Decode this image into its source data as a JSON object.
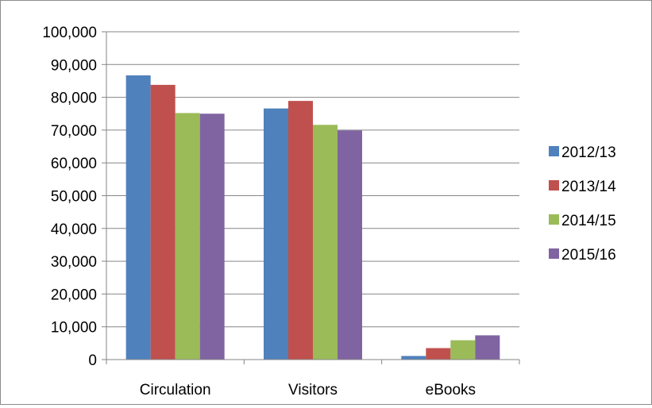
{
  "chart_data": {
    "type": "bar",
    "categories": [
      "Circulation",
      "Visitors",
      "eBooks"
    ],
    "series": [
      {
        "name": "2012/13",
        "color": "#4F81BD",
        "values": [
          86700,
          76600,
          1100
        ]
      },
      {
        "name": "2013/14",
        "color": "#C0504D",
        "values": [
          83800,
          78900,
          3500
        ]
      },
      {
        "name": "2014/15",
        "color": "#9BBB59",
        "values": [
          75200,
          71600,
          5900
        ]
      },
      {
        "name": "2015/16",
        "color": "#8064A2",
        "values": [
          75000,
          69900,
          7400
        ]
      }
    ],
    "y_ticks": [
      "0",
      "10,000",
      "20,000",
      "30,000",
      "40,000",
      "50,000",
      "60,000",
      "70,000",
      "80,000",
      "90,000",
      "100,000"
    ],
    "ylim": [
      0,
      100000
    ],
    "grid": true,
    "legend": "right",
    "gridline_color": "#868686"
  }
}
